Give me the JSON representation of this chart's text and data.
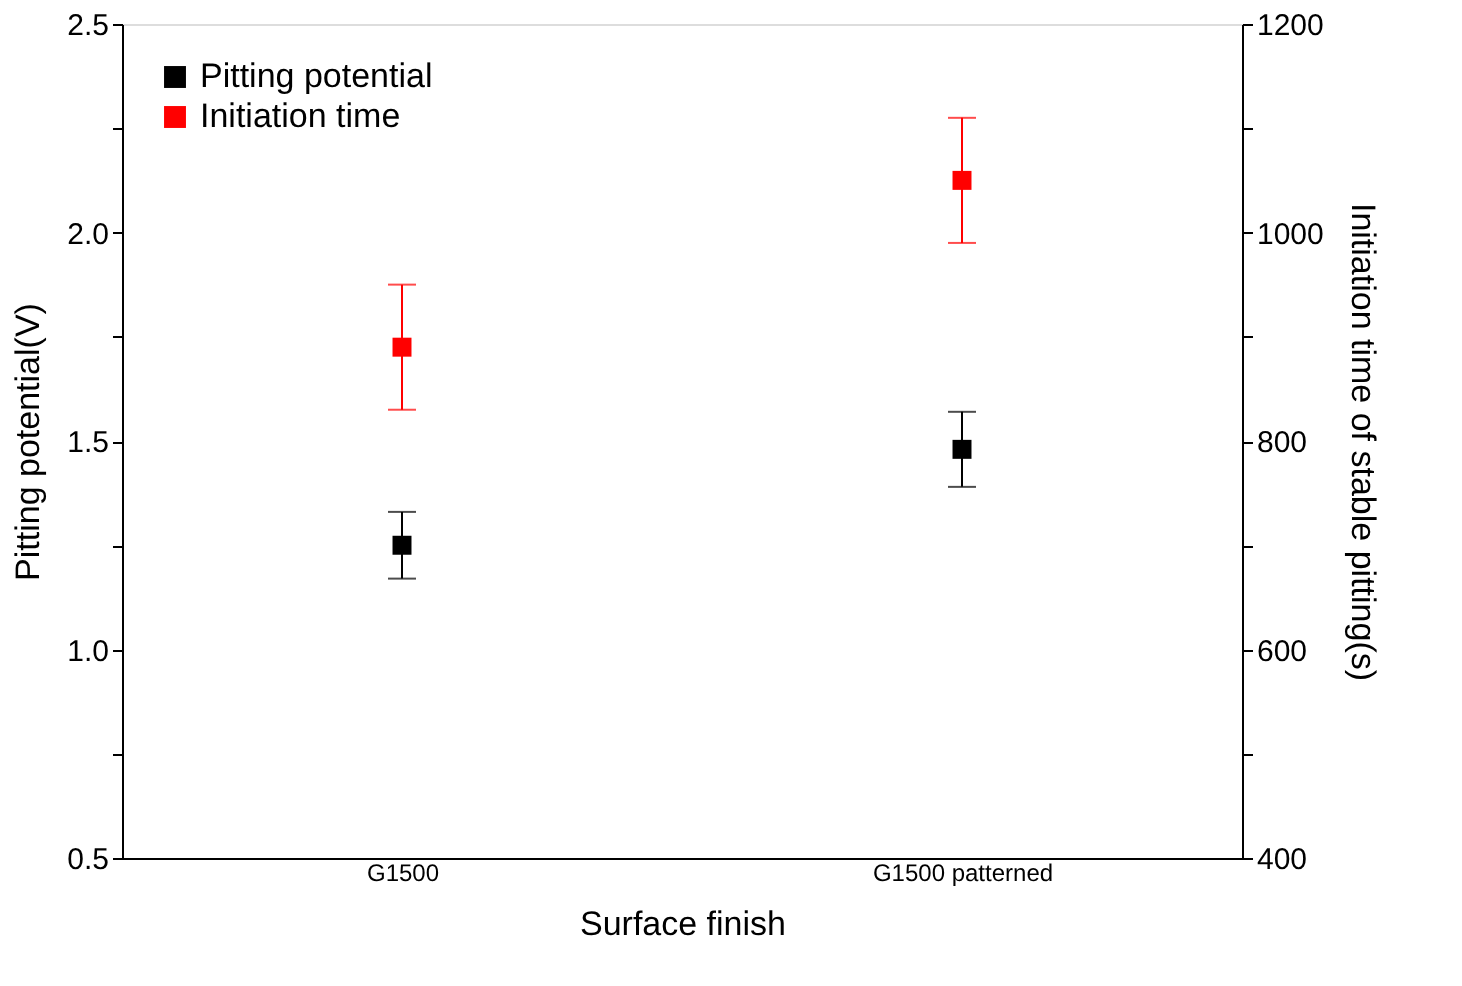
{
  "chart_data": {
    "type": "scatter",
    "xlabel": "Surface finish",
    "ylabel": "Pitting potential(V)",
    "y2label": "Initiation time of stable pitting(s)",
    "categories": [
      "G1500",
      "G1500 patterned"
    ],
    "series": [
      {
        "name": "Pitting potential",
        "color": "#000000",
        "values": [
          1.25,
          1.48
        ],
        "errors": [
          [
            1.17,
            1.33
          ],
          [
            1.39,
            1.57
          ]
        ]
      },
      {
        "name": "Initiation time",
        "color": "#ff0000",
        "values": [
          890,
          1050
        ],
        "errors": [
          [
            830,
            950
          ],
          [
            990,
            1110
          ]
        ],
        "axis": "y2"
      }
    ],
    "ylim": [
      0.5,
      2.5
    ],
    "yticks": [
      0.5,
      {
        "value": 0.75,
        "label": null
      },
      {
        "value": 1,
        "label": "1.0"
      },
      {
        "value": 1.25,
        "label": null
      },
      1.5,
      {
        "value": 1.75,
        "label": null
      },
      {
        "value": 2,
        "label": "2.0"
      },
      {
        "value": 2.25,
        "label": null
      },
      2.5
    ],
    "y2lim": [
      400,
      1200
    ],
    "y2ticks": [
      400,
      {
        "value": 500,
        "label": null
      },
      600,
      {
        "value": 700,
        "label": null
      },
      800,
      {
        "value": 900,
        "label": null
      },
      1000,
      {
        "value": 1100,
        "label": null
      },
      1200
    ],
    "marker": "square",
    "legend": "top left",
    "grid": false
  }
}
